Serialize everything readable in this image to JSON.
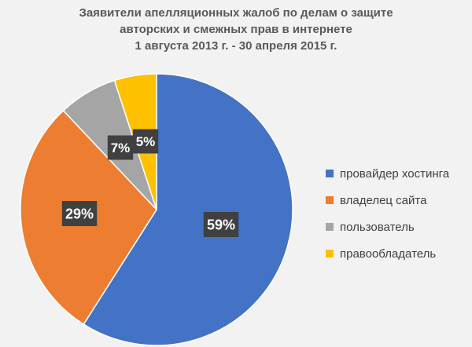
{
  "chart_data": {
    "type": "pie",
    "title": [
      "Заявители апелляционных жалоб по делам о защите",
      "авторских и смежных прав в интернете",
      "1 августа 2013 г. - 30 апреля 2015 г."
    ],
    "categories": [
      "провайдер хостинга",
      "владелец сайта",
      "пользователь",
      "правообладатель"
    ],
    "values": [
      59,
      29,
      7,
      5
    ],
    "labels": [
      "59%",
      "29%",
      "7%",
      "5%"
    ],
    "colors": [
      "#4472c4",
      "#ed7d31",
      "#a5a5a5",
      "#ffc000"
    ],
    "legend": "right"
  }
}
